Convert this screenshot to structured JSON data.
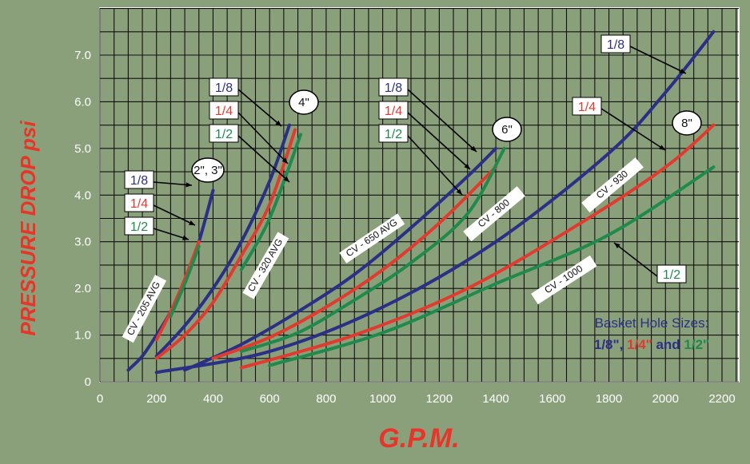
{
  "chart_data": {
    "type": "line",
    "xlabel": "G.P.M.",
    "ylabel": "PRESSURE DROP psi",
    "xlim": [
      0,
      2200
    ],
    "ylim": [
      0,
      7.5
    ],
    "x_ticks": [
      "0",
      "200",
      "400",
      "600",
      "800",
      "1000",
      "1200",
      "1400",
      "1600",
      "1800",
      "2000",
      "2200"
    ],
    "y_ticks": [
      "0",
      "1.0",
      "2.0",
      "3.0",
      "4.0",
      "5.0",
      "6.0",
      "7.0"
    ],
    "grid": true,
    "colors": {
      "1/8": "#2b2f86",
      "1/4": "#e23a2f",
      "1/2": "#1f8a4c"
    },
    "groups": [
      {
        "size_label": "2\", 3\"",
        "cv_label": "CV - 205 AVG",
        "series": [
          {
            "name": "1/8",
            "x": [
              100,
              150,
              200,
              250,
              300,
              350,
              400
            ],
            "y": [
              0.25,
              0.55,
              1.0,
              1.5,
              2.15,
              3.0,
              4.1
            ]
          },
          {
            "name": "1/4",
            "x": [
              200,
              250,
              300,
              350
            ],
            "y": [
              0.9,
              1.5,
              2.2,
              3.0
            ]
          },
          {
            "name": "1/2",
            "x": [
              250,
              300,
              350
            ],
            "y": [
              1.4,
              2.1,
              2.9
            ]
          }
        ]
      },
      {
        "size_label": "4\"",
        "cv_label": "CV - 320 AVG",
        "series": [
          {
            "name": "1/8",
            "x": [
              200,
              300,
              400,
              500,
              600,
              670
            ],
            "y": [
              0.55,
              1.2,
              2.0,
              3.0,
              4.3,
              5.5
            ]
          },
          {
            "name": "1/4",
            "x": [
              200,
              300,
              400,
              500,
              600,
              690
            ],
            "y": [
              0.5,
              1.0,
              1.7,
              2.7,
              3.8,
              5.4
            ]
          },
          {
            "name": "1/2",
            "x": [
              500,
              600,
              710
            ],
            "y": [
              2.4,
              3.5,
              5.3
            ]
          }
        ]
      },
      {
        "size_label": "6\"",
        "cv_label": "CV - 650 AVG",
        "series": [
          {
            "name": "1/8",
            "x": [
              300,
              500,
              700,
              900,
              1100,
              1300,
              1400
            ],
            "y": [
              0.25,
              0.8,
              1.5,
              2.3,
              3.3,
              4.4,
              5.0
            ]
          },
          {
            "name": "1/4",
            "x": [
              400,
              600,
              800,
              1000,
              1200,
              1400
            ],
            "y": [
              0.5,
              0.95,
              1.6,
              2.4,
              3.4,
              4.6
            ]
          },
          {
            "name": "1/2",
            "x": [
              500,
              700,
              900,
              1100,
              1300,
              1430
            ],
            "y": [
              0.65,
              1.05,
              1.75,
              2.55,
              3.6,
              5.0
            ]
          }
        ]
      },
      {
        "size_label": "8\"",
        "cv_label": "CV - 800",
        "series": [
          {
            "name": "1/8",
            "x": [
              200,
              600,
              1000,
              1400,
              1800,
              2000,
              2170
            ],
            "y": [
              0.2,
              0.65,
              1.6,
              3.0,
              4.9,
              6.2,
              7.5
            ]
          }
        ]
      },
      {
        "size_label": "8\"",
        "cv_label": "CV - 930",
        "series": [
          {
            "name": "1/4",
            "x": [
              500,
              900,
              1300,
              1700,
              2000,
              2170
            ],
            "y": [
              0.3,
              1.0,
              2.0,
              3.4,
              4.6,
              5.5
            ]
          }
        ]
      },
      {
        "size_label": "8\"",
        "cv_label": "CV - 1000",
        "series": [
          {
            "name": "1/2",
            "x": [
              600,
              1000,
              1400,
              1800,
              2170
            ],
            "y": [
              0.35,
              1.05,
              2.1,
              3.15,
              4.6
            ]
          }
        ]
      }
    ],
    "annotations": {
      "group_left_labels": {
        "g23": [
          "1/8",
          "1/4",
          "1/2"
        ],
        "g4": [
          "1/8",
          "1/4",
          "1/2"
        ],
        "g6": [
          "1/8",
          "1/4",
          "1/2"
        ],
        "g8_top": [
          "1/8",
          "1/4"
        ],
        "g8_bottom": [
          "1/2"
        ]
      },
      "size_ovals": [
        "2\", 3\"",
        "4\"",
        "6\"",
        "8\""
      ],
      "legend": {
        "title": "Basket Hole Sizes:",
        "items": [
          "1/8\"",
          "1/4\"",
          "1/2\""
        ],
        "sep1": ", ",
        "sep2": " and "
      }
    }
  }
}
